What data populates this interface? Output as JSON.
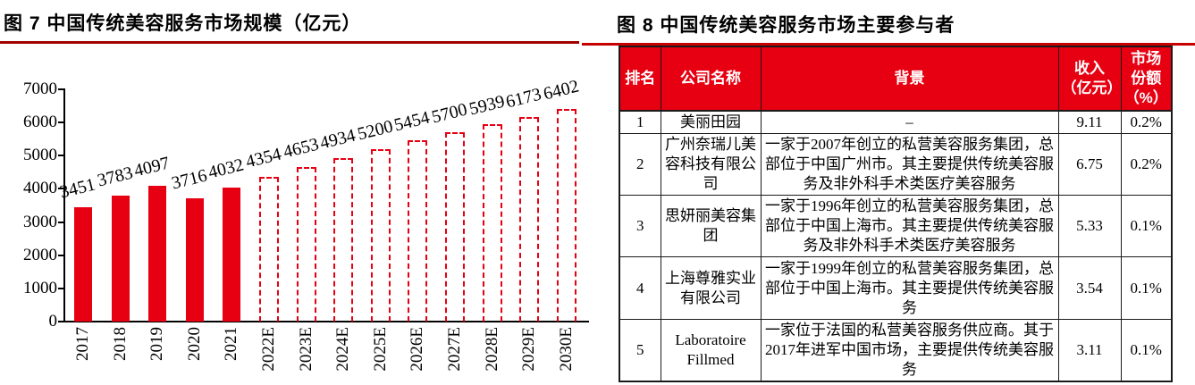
{
  "theme": {
    "bar_red": "#e60012",
    "header_red": "#e60012",
    "rule_left": "#a00000",
    "rule_right": "#c60000"
  },
  "figure7": {
    "title": "图 7 中国传统美容服务市场规模（亿元）"
  },
  "chart_data": {
    "type": "bar",
    "title": "图 7 中国传统美容服务市场规模（亿元）",
    "categories": [
      "2017",
      "2018",
      "2019",
      "2020",
      "2021",
      "2022E",
      "2023E",
      "2024E",
      "2025E",
      "2026E",
      "2027E",
      "2028E",
      "2029E",
      "2030E"
    ],
    "values": [
      3451,
      3783,
      4097,
      3716,
      4032,
      4354,
      4653,
      4934,
      5200,
      5454,
      5700,
      5939,
      6173,
      6402
    ],
    "solid_count": 5,
    "forecast_style": "dashed-outline",
    "xlabel": "",
    "ylabel": "",
    "ylim": [
      0,
      7000
    ],
    "ytick_step": 1000,
    "grid": false,
    "legend": "none",
    "data_labels": true
  },
  "figure8": {
    "title": "图 8 中国传统美容服务市场主要参与者",
    "table": {
      "headers": [
        "排名",
        "公司名称",
        "背景",
        "收入（亿元）",
        "市场份额（%）"
      ],
      "rows": [
        {
          "rank": "1",
          "company": "美丽田园",
          "background": "–",
          "revenue": "9.11",
          "share": "0.2%"
        },
        {
          "rank": "2",
          "company": "广州奈瑞儿美容科技有限公司",
          "background": "一家于2007年创立的私营美容服务集团，总部位于中国广州市。其主要提供传统美容服务及非外科手术类医疗美容服务",
          "revenue": "6.75",
          "share": "0.2%"
        },
        {
          "rank": "3",
          "company": "思妍丽美容集团",
          "background": "一家于1996年创立的私营美容服务集团，总部位于中国上海市。其主要提供传统美容服务及非外科手术类医疗美容服务",
          "revenue": "5.33",
          "share": "0.1%"
        },
        {
          "rank": "4",
          "company": "上海尊雅实业有限公司",
          "background": "一家于1999年创立的私营美容服务集团，总部位于中国上海市。其主要提供传统美容服务",
          "revenue": "3.54",
          "share": "0.1%"
        },
        {
          "rank": "5",
          "company": "Laboratoire Fillmed",
          "background": "一家位于法国的私营美容服务供应商。其于2017年进军中国市场，主要提供传统美容服务",
          "revenue": "3.11",
          "share": "0.1%"
        }
      ]
    }
  }
}
